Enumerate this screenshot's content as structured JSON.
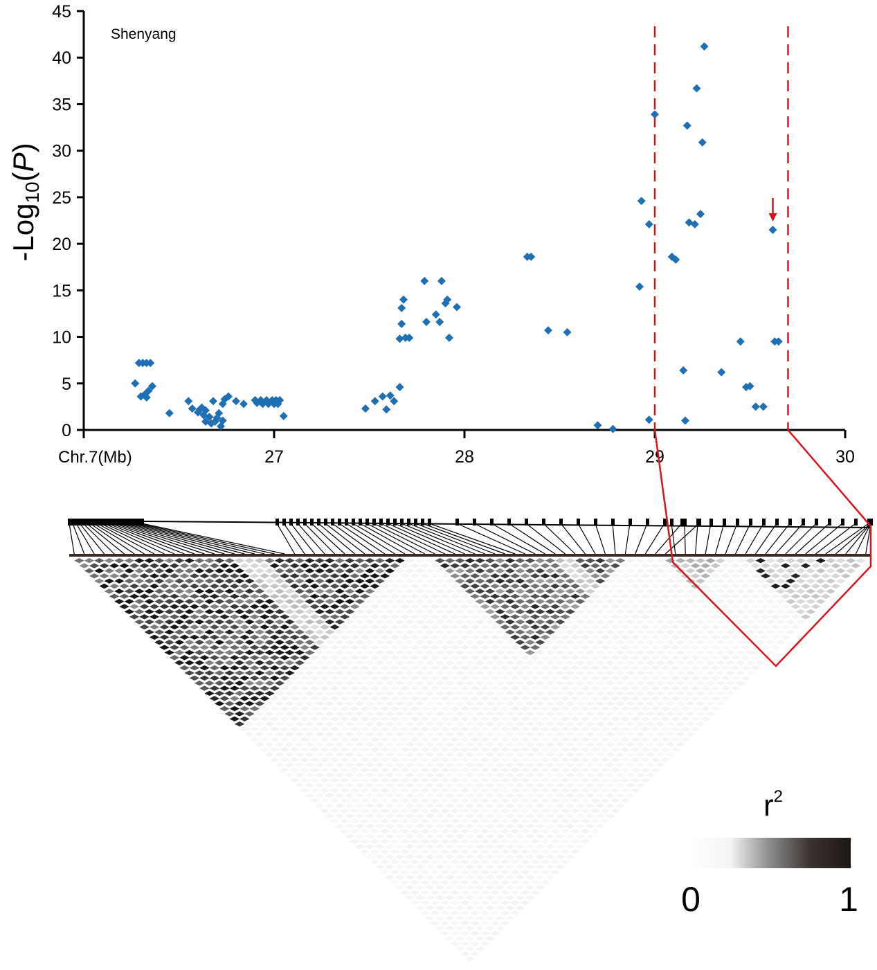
{
  "chart_data": {
    "type": "scatter",
    "panel_label": "Shenyang",
    "ylabel": {
      "prefix": "-Log",
      "sub": "10",
      "open": "(",
      "italic": "P",
      "close": ")"
    },
    "xlabel": "Chr.7(Mb)",
    "xlim": [
      26,
      30
    ],
    "ylim": [
      0,
      45
    ],
    "x_ticks": [
      26,
      27,
      28,
      29,
      30
    ],
    "x_tick_labels": [
      "",
      "27",
      "28",
      "29",
      "30"
    ],
    "y_ticks": [
      0,
      5,
      10,
      15,
      20,
      25,
      30,
      35,
      40,
      45
    ],
    "y_tick_labels": [
      "0",
      "5",
      "10",
      "15",
      "20",
      "25",
      "30",
      "35",
      "40",
      "45"
    ],
    "marker_color": "#1f6fb4",
    "highlight_color": "#d7161c",
    "highlight_region": [
      29.0,
      29.7
    ],
    "arrow_at": [
      29.62,
      21.5
    ],
    "points": [
      [
        26.27,
        5.0
      ],
      [
        26.29,
        7.2
      ],
      [
        26.3,
        3.6
      ],
      [
        26.31,
        7.2
      ],
      [
        26.32,
        3.8
      ],
      [
        26.33,
        7.2
      ],
      [
        26.34,
        4.2
      ],
      [
        26.35,
        7.2
      ],
      [
        26.36,
        4.7
      ],
      [
        26.33,
        3.5
      ],
      [
        26.45,
        1.8
      ],
      [
        26.55,
        3.1
      ],
      [
        26.57,
        2.3
      ],
      [
        26.6,
        1.9
      ],
      [
        26.61,
        2.2
      ],
      [
        26.62,
        2.4
      ],
      [
        26.63,
        1.6
      ],
      [
        26.64,
        2.1
      ],
      [
        26.64,
        0.9
      ],
      [
        26.66,
        1.4
      ],
      [
        26.67,
        0.7
      ],
      [
        26.68,
        3.1
      ],
      [
        26.69,
        0.9
      ],
      [
        26.7,
        1.3
      ],
      [
        26.71,
        1.8
      ],
      [
        26.72,
        0.4
      ],
      [
        26.73,
        2.8
      ],
      [
        26.73,
        1.0
      ],
      [
        26.74,
        3.3
      ],
      [
        26.76,
        3.6
      ],
      [
        26.8,
        3.1
      ],
      [
        26.84,
        2.8
      ],
      [
        26.9,
        3.2
      ],
      [
        26.91,
        2.9
      ],
      [
        26.93,
        3.2
      ],
      [
        26.94,
        2.8
      ],
      [
        26.96,
        3.2
      ],
      [
        26.97,
        2.8
      ],
      [
        26.99,
        3.2
      ],
      [
        27.0,
        2.8
      ],
      [
        27.01,
        3.2
      ],
      [
        27.02,
        2.8
      ],
      [
        27.03,
        3.2
      ],
      [
        27.05,
        1.5
      ],
      [
        27.48,
        2.3
      ],
      [
        27.53,
        3.1
      ],
      [
        27.57,
        3.6
      ],
      [
        27.59,
        2.2
      ],
      [
        27.61,
        3.7
      ],
      [
        27.63,
        3.1
      ],
      [
        27.66,
        4.6
      ],
      [
        27.66,
        9.8
      ],
      [
        27.67,
        11.4
      ],
      [
        27.67,
        13.1
      ],
      [
        27.68,
        14.0
      ],
      [
        27.69,
        9.9
      ],
      [
        27.71,
        9.9
      ],
      [
        27.79,
        16.0
      ],
      [
        27.8,
        11.6
      ],
      [
        27.85,
        12.4
      ],
      [
        27.87,
        11.6
      ],
      [
        27.88,
        16.0
      ],
      [
        27.9,
        13.6
      ],
      [
        27.91,
        14.0
      ],
      [
        27.92,
        9.9
      ],
      [
        27.96,
        13.2
      ],
      [
        28.33,
        18.6
      ],
      [
        28.35,
        18.6
      ],
      [
        28.44,
        10.7
      ],
      [
        28.54,
        10.5
      ],
      [
        28.7,
        0.5
      ],
      [
        28.78,
        0.1
      ],
      [
        28.92,
        15.4
      ],
      [
        28.93,
        24.6
      ],
      [
        28.97,
        22.1
      ],
      [
        28.97,
        1.1
      ],
      [
        29.0,
        33.9
      ],
      [
        29.09,
        18.6
      ],
      [
        29.11,
        18.3
      ],
      [
        29.15,
        6.4
      ],
      [
        29.16,
        1.0
      ],
      [
        29.17,
        32.7
      ],
      [
        29.18,
        22.3
      ],
      [
        29.21,
        22.1
      ],
      [
        29.22,
        36.7
      ],
      [
        29.24,
        23.2
      ],
      [
        29.25,
        30.9
      ],
      [
        29.26,
        41.2
      ],
      [
        29.35,
        6.2
      ],
      [
        29.45,
        9.5
      ],
      [
        29.48,
        4.6
      ],
      [
        29.5,
        4.7
      ],
      [
        29.53,
        2.5
      ],
      [
        29.57,
        2.5
      ],
      [
        29.62,
        21.5
      ],
      [
        29.63,
        9.5
      ],
      [
        29.65,
        9.5
      ]
    ],
    "ld_legend": {
      "title_base": "r",
      "title_sup": "2",
      "min_label": "0",
      "max_label": "1"
    }
  }
}
